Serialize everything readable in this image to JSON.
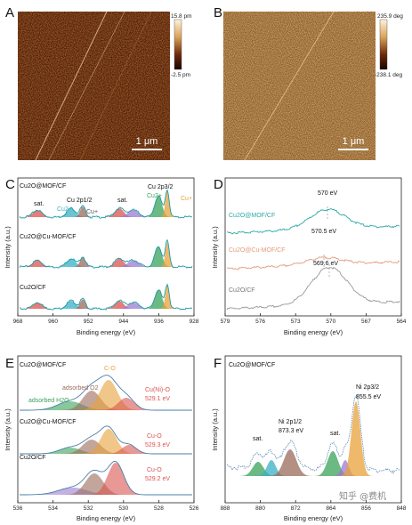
{
  "panels": {
    "A": {
      "label": "A",
      "colorbar_max": "15.8 pm",
      "colorbar_min": "-2.5 pm",
      "scale_bar": "1 μm"
    },
    "B": {
      "label": "B",
      "colorbar_max": "235.9 deg",
      "colorbar_min": "-238.1 deg",
      "scale_bar": "1 μm"
    },
    "C": {
      "label": "C",
      "xlabel": "Binding energy (eV)",
      "ylabel": "Intensity (a.u.)",
      "xticks": [
        "968",
        "960",
        "952",
        "944",
        "936",
        "928"
      ],
      "samples": [
        "Cu2O@MOF/CF",
        "Cu2O@Cu-MOF/CF",
        "Cu2O/CF"
      ],
      "annotations": {
        "sat1": "sat.",
        "cu2p12": "Cu 2p1/2",
        "cu2plus": "Cu2+",
        "cuplus": "Cu+",
        "sat2": "sat.",
        "cu2p32": "Cu 2p3/2",
        "cu2plus_b": "Cu2+",
        "cuplus_b": "Cu+"
      }
    },
    "D": {
      "label": "D",
      "xlabel": "Binding energy (eV)",
      "ylabel": "Intensity (a.u.)",
      "xticks": [
        "579",
        "576",
        "573",
        "570",
        "567",
        "564"
      ],
      "samples": [
        "Cu2O@MOF/CF",
        "Cu2O@Cu-MOF/CF",
        "Cu2O/CF"
      ],
      "peaks": [
        "570 eV",
        "570.5 eV",
        "569.6 eV"
      ]
    },
    "E": {
      "label": "E",
      "xlabel": "Binding energy (eV)",
      "ylabel": "Intensity (a.u.)",
      "xticks": [
        "536",
        "534",
        "532",
        "530",
        "528",
        "526"
      ],
      "samples": [
        "Cu2O@MOF/CF",
        "Cu2O@Cu-MOF/CF",
        "Cu2O/CF"
      ],
      "annotations": {
        "co": "C-O",
        "ads_o2": "adsorbed O2",
        "ads_h2o": "adsorbed H2O",
        "cuni_o": "Cu(Ni)-O",
        "cuni_o_e": "529.1 eV",
        "cuo2": "Cu-O",
        "cuo2_e": "529.3 eV",
        "cuo3": "Cu-O",
        "cuo3_e": "529.2 eV"
      }
    },
    "F": {
      "label": "F",
      "xlabel": "Binding energy (eV)",
      "ylabel": "Intensity (a.u.)",
      "xticks": [
        "888",
        "880",
        "872",
        "864",
        "856",
        "848"
      ],
      "sample": "Cu2O@MOF/CF",
      "annotations": {
        "sat1": "sat.",
        "ni2p12": "Ni 2p1/2",
        "ni2p12_e": "873.3 eV",
        "sat2": "sat.",
        "ni2p32": "Ni 2p3/2",
        "ni2p32_e": "855.5 eV"
      }
    }
  },
  "watermark": "知乎 @费机",
  "colors": {
    "line_C": "#1c9aa8",
    "line_D1": "#2aa7a4",
    "line_D2": "#e39a7c",
    "line_D3": "#999999",
    "line_E": "#4a7fa8",
    "line_F": "#5d8ab4",
    "peak_green": "#3aa15a",
    "peak_orange": "#e8a23a",
    "peak_teal": "#3ab0c4",
    "peak_red": "#d9534f",
    "peak_purple": "#9b7bd2",
    "peak_brown": "#9a6b5a"
  },
  "chart_data": [
    {
      "panel": "D",
      "type": "line",
      "x_range": [
        579,
        564
      ],
      "series": [
        {
          "name": "Cu2O@MOF/CF",
          "peak_x": 570.0
        },
        {
          "name": "Cu2O@Cu-MOF/CF",
          "peak_x": 570.5
        },
        {
          "name": "Cu2O/CF",
          "peak_x": 569.6
        }
      ]
    },
    {
      "panel": "E",
      "type": "area",
      "x_range": [
        536,
        526
      ],
      "series": [
        {
          "name": "Cu2O@MOF/CF",
          "peak_x": 529.1
        },
        {
          "name": "Cu2O@Cu-MOF/CF",
          "peak_x": 529.3
        },
        {
          "name": "Cu2O/CF",
          "peak_x": 529.2
        }
      ]
    },
    {
      "panel": "F",
      "type": "area",
      "x_range": [
        888,
        848
      ],
      "series": [
        {
          "name": "Cu2O@MOF/CF",
          "peak_x": [
            873.3,
            855.5
          ]
        }
      ]
    }
  ]
}
